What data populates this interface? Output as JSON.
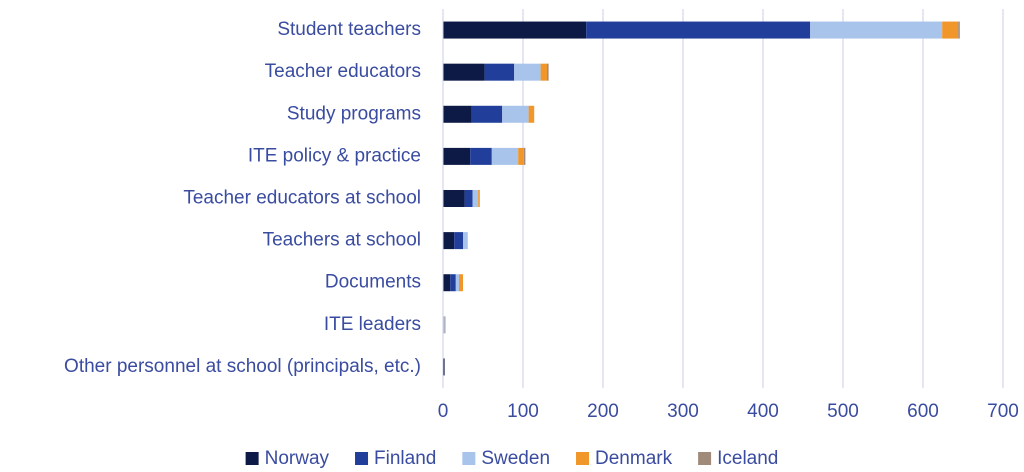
{
  "chart_data": {
    "type": "stacked_barh",
    "categories": [
      "Student teachers",
      "Teacher educators",
      "Study programs",
      "ITE policy & practice",
      "Teacher educators at school",
      "Teachers at school",
      "Documents",
      "ITE leaders",
      "Other personnel at school (principals, etc.)"
    ],
    "series": [
      {
        "name": "Norway",
        "color": "#0d1a45",
        "values": [
          179,
          52,
          36,
          34,
          27,
          14,
          9,
          0,
          2
        ]
      },
      {
        "name": "Finland",
        "color": "#213f9a",
        "values": [
          280,
          37,
          38,
          27,
          10,
          11,
          7,
          0,
          0
        ]
      },
      {
        "name": "Sweden",
        "color": "#a9c4ea",
        "values": [
          165,
          33,
          33,
          33,
          7,
          6,
          4,
          2,
          0
        ]
      },
      {
        "name": "Denmark",
        "color": "#f0962a",
        "values": [
          20,
          8,
          7,
          7,
          2,
          0,
          5,
          0,
          0
        ]
      },
      {
        "name": "Iceland",
        "color": "#a08a7a",
        "values": [
          2,
          2,
          0,
          2,
          0,
          0,
          0,
          1,
          0
        ]
      }
    ],
    "xlim": [
      0,
      700
    ],
    "xticks": [
      0,
      100,
      200,
      300,
      400,
      500,
      600,
      700
    ],
    "grid": true,
    "legend": "bottom"
  }
}
